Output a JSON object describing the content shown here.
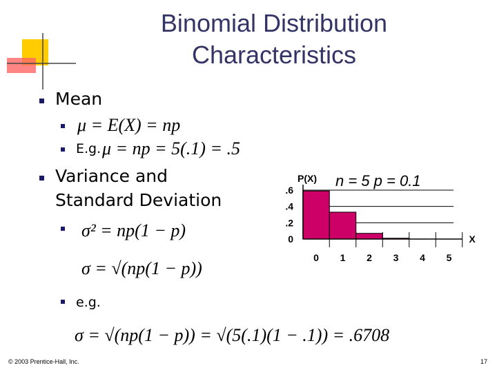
{
  "slide": {
    "title": [
      "Binomial Distribution",
      "Characteristics"
    ],
    "bullets": {
      "mean": "Mean",
      "mean_formula": "μ = E(X) = np",
      "eg1": "E.g.",
      "eg1_formula": "μ = np = 5(.1) = .5",
      "variance": [
        "Variance and",
        "Standard Deviation"
      ],
      "variance_formula": "σ² = np(1 − p)",
      "sd_formula": "σ = √(np(1 − p))",
      "eg2": "e.g.",
      "eg2_formula": "σ = √(np(1 − p)) = √(5(.1)(1 − .1)) = .6708"
    },
    "footer": "© 2003 Prentice-Hall, Inc.",
    "page_number": "17"
  },
  "chart_data": {
    "type": "bar",
    "y_label": "P(X)",
    "x_label": "X",
    "annotation": "n = 5  p = 0.1",
    "categories": [
      "0",
      "1",
      "2",
      "3",
      "4",
      "5"
    ],
    "values": [
      0.59,
      0.33,
      0.07,
      0.01,
      0,
      0
    ],
    "color": "#cc0066",
    "ylim": [
      0,
      0.6
    ],
    "yticks": [
      0,
      {
        "value": 0.2,
        "label": ".2"
      },
      {
        "value": 0.4,
        "label": ".4"
      },
      {
        "value": 0.6,
        "label": ".6"
      }
    ],
    "grid": true
  }
}
